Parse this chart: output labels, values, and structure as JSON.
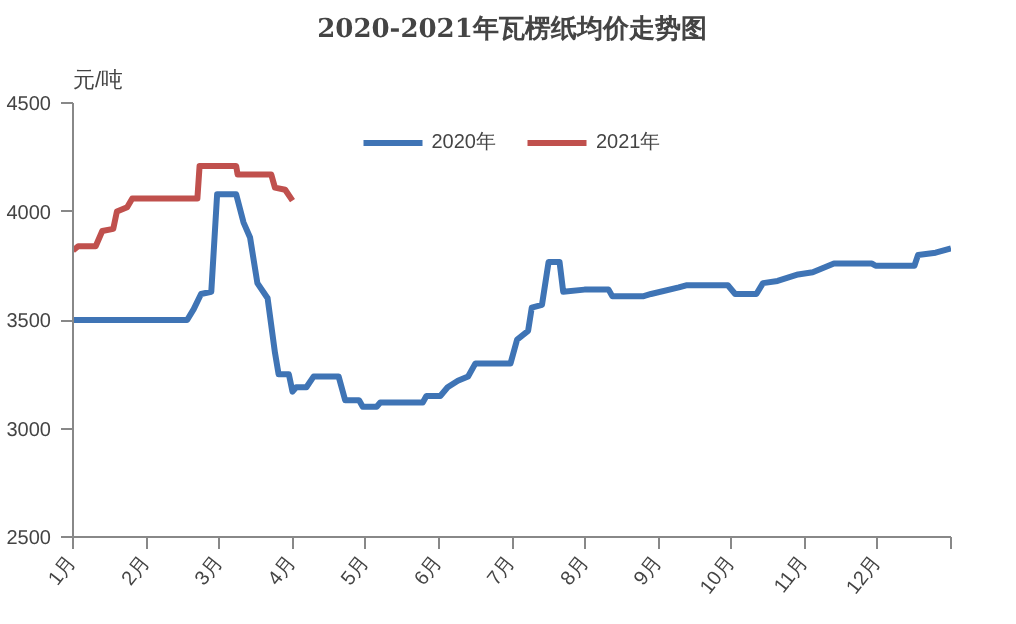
{
  "chart_data": {
    "type": "line",
    "title": "2020-2021年瓦楞纸均价走势图",
    "ylabel": "元/吨",
    "xlim": [
      1,
      13
    ],
    "xticks": [
      {
        "value": 1,
        "label": "1月"
      },
      {
        "value": 2,
        "label": "2月"
      },
      {
        "value": 3,
        "label": "3月"
      },
      {
        "value": 4,
        "label": "4月"
      },
      {
        "value": 5,
        "label": "5月"
      },
      {
        "value": 6,
        "label": "6月"
      },
      {
        "value": 7,
        "label": "7月"
      },
      {
        "value": 8,
        "label": "8月"
      },
      {
        "value": 9,
        "label": "9月"
      },
      {
        "value": 10,
        "label": "10月"
      },
      {
        "value": 11,
        "label": "11月"
      },
      {
        "value": 12,
        "label": "12月"
      },
      {
        "value": 13,
        "label": null
      }
    ],
    "ylim": [
      2500,
      4500
    ],
    "yticks": [
      2500,
      3000,
      3500,
      4000,
      4500
    ],
    "grid": false,
    "legend": "top",
    "marker": "none",
    "line_style": "solid",
    "series": [
      {
        "name": "2020年",
        "color": "#3f74b5",
        "x": [
          1.0,
          2.56,
          2.65,
          2.75,
          2.89,
          2.97,
          3.23,
          3.33,
          3.42,
          3.52,
          3.66,
          3.76,
          3.81,
          3.95,
          4.0,
          4.05,
          4.19,
          4.29,
          4.63,
          4.72,
          4.91,
          4.96,
          5.15,
          5.2,
          5.78,
          5.83,
          6.02,
          6.12,
          6.26,
          6.4,
          6.5,
          6.98,
          7.07,
          7.22,
          7.27,
          7.41,
          7.5,
          7.65,
          7.7,
          7.99,
          8.32,
          8.37,
          8.8,
          8.9,
          9.28,
          9.38,
          9.95,
          10.05,
          10.34,
          10.43,
          10.63,
          10.91,
          11.11,
          11.4,
          11.92,
          11.97,
          12.5,
          12.55,
          12.79,
          13.0
        ],
        "values": [
          3500,
          3500,
          3550,
          3620,
          3630,
          4080,
          4080,
          3950,
          3880,
          3670,
          3600,
          3350,
          3250,
          3250,
          3170,
          3190,
          3190,
          3240,
          3240,
          3130,
          3130,
          3100,
          3100,
          3120,
          3120,
          3150,
          3150,
          3190,
          3220,
          3240,
          3300,
          3300,
          3410,
          3450,
          3557,
          3570,
          3767,
          3767,
          3630,
          3640,
          3640,
          3610,
          3610,
          3620,
          3650,
          3660,
          3660,
          3620,
          3620,
          3670,
          3680,
          3710,
          3720,
          3760,
          3760,
          3750,
          3750,
          3800,
          3810,
          3830
        ]
      },
      {
        "name": "2021年",
        "color": "#c0504d",
        "x": [
          1.0,
          1.07,
          1.31,
          1.4,
          1.55,
          1.6,
          1.74,
          1.81,
          2.7,
          2.73,
          3.23,
          3.25,
          3.71,
          3.76,
          3.9,
          4.0
        ],
        "values": [
          3820,
          3840,
          3840,
          3910,
          3920,
          4000,
          4020,
          4060,
          4060,
          4210,
          4210,
          4170,
          4170,
          4110,
          4100,
          4050
        ]
      }
    ]
  }
}
